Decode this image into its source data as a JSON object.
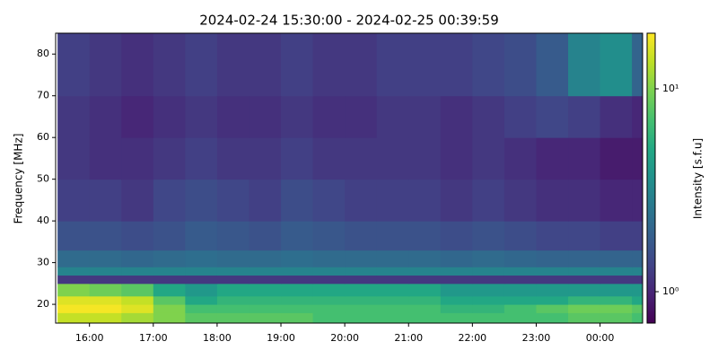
{
  "chart_data": {
    "type": "heatmap",
    "title": "2024-02-24 15:30:00 - 2024-02-25 00:39:59",
    "ylabel": "Frequency [MHz]",
    "colorbar_label": "Intensity [s.f.u]",
    "colormap": "viridis",
    "color_scale": "log",
    "xlim": [
      15.47,
      24.667
    ],
    "xticks": [
      {
        "value": 16,
        "label": "16:00"
      },
      {
        "value": 17,
        "label": "17:00"
      },
      {
        "value": 18,
        "label": "18:00"
      },
      {
        "value": 19,
        "label": "19:00"
      },
      {
        "value": 20,
        "label": "20:00"
      },
      {
        "value": 21,
        "label": "21:00"
      },
      {
        "value": 22,
        "label": "22:00"
      },
      {
        "value": 23,
        "label": "23:00"
      },
      {
        "value": 24,
        "label": "00:00"
      }
    ],
    "ylim": [
      15.5,
      85
    ],
    "yticks": [
      20,
      30,
      40,
      50,
      60,
      70,
      80
    ],
    "clim": [
      0.7,
      18.8
    ],
    "cticks": [
      {
        "value": 1,
        "label": "10⁰"
      },
      {
        "value": 10,
        "label": "10¹"
      }
    ],
    "x_bins": [
      15.5,
      16,
      16.5,
      17,
      17.5,
      18,
      18.5,
      19,
      19.5,
      20,
      20.5,
      21,
      21.5,
      22,
      22.5,
      23,
      23.5,
      24,
      24.5,
      24.667
    ],
    "y_bins": [
      15.5,
      18,
      20,
      22,
      25,
      27,
      29,
      33,
      40,
      50,
      60,
      70,
      85
    ],
    "z": [
      [
        14,
        14,
        12,
        10,
        8,
        8,
        8,
        8,
        7,
        7,
        7,
        7,
        7,
        7,
        7,
        7,
        8,
        8,
        7
      ],
      [
        18,
        18,
        16,
        10,
        7,
        7,
        7,
        7,
        7,
        7,
        7,
        7,
        6,
        6,
        7,
        8,
        9,
        9,
        8
      ],
      [
        16,
        16,
        14,
        8,
        5,
        6,
        6,
        6,
        6,
        6,
        6,
        6,
        5,
        5,
        5,
        5,
        6,
        6,
        5
      ],
      [
        10,
        9,
        8,
        5,
        4,
        5,
        5,
        5,
        5,
        5,
        5,
        5,
        4,
        4,
        4,
        4,
        4,
        4,
        4
      ],
      [
        1.2,
        1.2,
        1.2,
        1.2,
        1.2,
        1.2,
        1.2,
        1.2,
        1.2,
        1.2,
        1.2,
        1.2,
        1.2,
        1.2,
        1.2,
        1.2,
        1.2,
        1.2,
        1.2
      ],
      [
        3,
        3,
        3,
        3,
        3,
        3,
        3,
        3,
        3,
        3,
        3,
        3,
        3,
        3,
        3,
        3,
        3,
        3,
        3
      ],
      [
        2.2,
        2.2,
        2.1,
        2.2,
        2.3,
        2.2,
        2.2,
        2.3,
        2.2,
        2.2,
        2.2,
        2.2,
        2.1,
        2.2,
        2.1,
        2,
        2,
        2,
        2
      ],
      [
        1.6,
        1.6,
        1.5,
        1.6,
        1.8,
        1.7,
        1.6,
        1.8,
        1.7,
        1.6,
        1.6,
        1.6,
        1.5,
        1.6,
        1.5,
        1.4,
        1.4,
        1.3,
        1.3
      ],
      [
        1.3,
        1.3,
        1.2,
        1.4,
        1.5,
        1.4,
        1.3,
        1.5,
        1.4,
        1.3,
        1.3,
        1.3,
        1.2,
        1.3,
        1.2,
        1.1,
        1.1,
        1,
        1
      ],
      [
        1.2,
        1.1,
        1.1,
        1.2,
        1.3,
        1.2,
        1.2,
        1.3,
        1.2,
        1.2,
        1.2,
        1.2,
        1.1,
        1.2,
        1.1,
        1,
        1,
        0.9,
        0.9
      ],
      [
        1.2,
        1.1,
        1,
        1.1,
        1.2,
        1.1,
        1.1,
        1.2,
        1.1,
        1.1,
        1.2,
        1.2,
        1.1,
        1.2,
        1.3,
        1.4,
        1.3,
        1.1,
        1
      ],
      [
        1.3,
        1.2,
        1.1,
        1.2,
        1.3,
        1.2,
        1.2,
        1.3,
        1.2,
        1.2,
        1.3,
        1.3,
        1.3,
        1.4,
        1.5,
        1.8,
        3,
        3.5,
        2
      ]
    ]
  }
}
